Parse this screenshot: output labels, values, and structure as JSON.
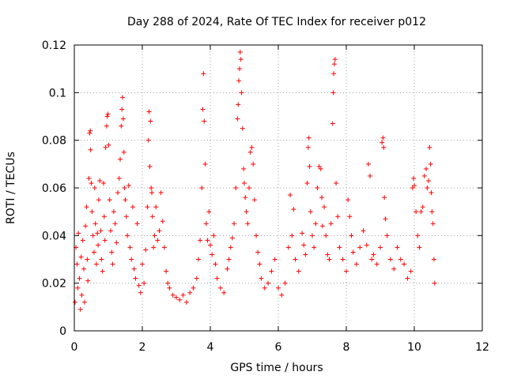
{
  "chart_data": {
    "type": "scatter",
    "title": "Day 288 of 2024, Rate Of TEC Index for receiver p012",
    "xlabel": "GPS time / hours",
    "ylabel": "ROTI / TECUs",
    "xlim": [
      0,
      12
    ],
    "ylim": [
      0,
      0.12
    ],
    "grid": true,
    "marker": "+",
    "color": "#ff0000",
    "x_ticks": [
      0,
      2,
      4,
      6,
      8,
      10,
      12
    ],
    "x_tick_labels": [
      "0",
      "2",
      "4",
      "6",
      "8",
      "10",
      "12"
    ],
    "y_ticks": [
      0,
      0.02,
      0.04,
      0.06,
      0.08,
      0.1,
      0.12
    ],
    "y_tick_labels": [
      "0",
      "0.02",
      "0.04",
      "0.06",
      "0.08",
      "0.1",
      "0.12"
    ],
    "series": [
      {
        "name": "ROTI",
        "points": [
          [
            0.02,
            0.012
          ],
          [
            0.05,
            0.035
          ],
          [
            0.08,
            0.028
          ],
          [
            0.1,
            0.018
          ],
          [
            0.12,
            0.041
          ],
          [
            0.15,
            0.022
          ],
          [
            0.18,
            0.009
          ],
          [
            0.2,
            0.031
          ],
          [
            0.22,
            0.015
          ],
          [
            0.25,
            0.038
          ],
          [
            0.28,
            0.026
          ],
          [
            0.3,
            0.012
          ],
          [
            0.33,
            0.044
          ],
          [
            0.36,
            0.052
          ],
          [
            0.38,
            0.03
          ],
          [
            0.4,
            0.021
          ],
          [
            0.43,
            0.064
          ],
          [
            0.45,
            0.083
          ],
          [
            0.47,
            0.084
          ],
          [
            0.48,
            0.076
          ],
          [
            0.5,
            0.062
          ],
          [
            0.52,
            0.05
          ],
          [
            0.55,
            0.04
          ],
          [
            0.58,
            0.033
          ],
          [
            0.6,
            0.06
          ],
          [
            0.62,
            0.045
          ],
          [
            0.65,
            0.028
          ],
          [
            0.68,
            0.041
          ],
          [
            0.7,
            0.036
          ],
          [
            0.72,
            0.055
          ],
          [
            0.75,
            0.063
          ],
          [
            0.78,
            0.042
          ],
          [
            0.8,
            0.03
          ],
          [
            0.83,
            0.025
          ],
          [
            0.86,
            0.062
          ],
          [
            0.88,
            0.048
          ],
          [
            0.9,
            0.038
          ],
          [
            0.92,
            0.077
          ],
          [
            0.95,
            0.086
          ],
          [
            0.97,
            0.09
          ],
          [
            0.99,
            0.091
          ],
          [
            1.01,
            0.078
          ],
          [
            1.04,
            0.055
          ],
          [
            1.07,
            0.042
          ],
          [
            1.1,
            0.033
          ],
          [
            1.13,
            0.028
          ],
          [
            1.16,
            0.05
          ],
          [
            1.2,
            0.045
          ],
          [
            1.24,
            0.037
          ],
          [
            1.28,
            0.058
          ],
          [
            1.32,
            0.064
          ],
          [
            1.35,
            0.072
          ],
          [
            1.38,
            0.086
          ],
          [
            1.4,
            0.093
          ],
          [
            1.42,
            0.098
          ],
          [
            1.44,
            0.089
          ],
          [
            1.46,
            0.075
          ],
          [
            1.48,
            0.06
          ],
          [
            1.5,
            0.055
          ],
          [
            1.53,
            0.048
          ],
          [
            1.56,
            0.04
          ],
          [
            1.6,
            0.061
          ],
          [
            1.64,
            0.035
          ],
          [
            1.68,
            0.03
          ],
          [
            1.72,
            0.052
          ],
          [
            1.76,
            0.026
          ],
          [
            1.8,
            0.022
          ],
          [
            1.85,
            0.045
          ],
          [
            1.9,
            0.019
          ],
          [
            1.95,
            0.016
          ],
          [
            2.0,
            0.028
          ],
          [
            2.05,
            0.02
          ],
          [
            2.1,
            0.034
          ],
          [
            2.15,
            0.052
          ],
          [
            2.18,
            0.08
          ],
          [
            2.2,
            0.092
          ],
          [
            2.22,
            0.069
          ],
          [
            2.24,
            0.088
          ],
          [
            2.26,
            0.06
          ],
          [
            2.28,
            0.058
          ],
          [
            2.3,
            0.048
          ],
          [
            2.33,
            0.035
          ],
          [
            2.36,
            0.04
          ],
          [
            2.4,
            0.052
          ],
          [
            2.45,
            0.038
          ],
          [
            2.5,
            0.042
          ],
          [
            2.55,
            0.058
          ],
          [
            2.6,
            0.046
          ],
          [
            2.65,
            0.035
          ],
          [
            2.7,
            0.025
          ],
          [
            2.75,
            0.02
          ],
          [
            2.8,
            0.018
          ],
          [
            2.9,
            0.015
          ],
          [
            3.0,
            0.014
          ],
          [
            3.1,
            0.013
          ],
          [
            3.2,
            0.015
          ],
          [
            3.3,
            0.012
          ],
          [
            3.4,
            0.016
          ],
          [
            3.5,
            0.018
          ],
          [
            3.6,
            0.022
          ],
          [
            3.65,
            0.03
          ],
          [
            3.7,
            0.038
          ],
          [
            3.75,
            0.06
          ],
          [
            3.78,
            0.093
          ],
          [
            3.8,
            0.108
          ],
          [
            3.82,
            0.088
          ],
          [
            3.85,
            0.07
          ],
          [
            3.88,
            0.045
          ],
          [
            3.92,
            0.038
          ],
          [
            3.96,
            0.05
          ],
          [
            4.0,
            0.036
          ],
          [
            4.05,
            0.032
          ],
          [
            4.1,
            0.04
          ],
          [
            4.15,
            0.028
          ],
          [
            4.2,
            0.022
          ],
          [
            4.3,
            0.018
          ],
          [
            4.4,
            0.016
          ],
          [
            4.5,
            0.026
          ],
          [
            4.55,
            0.03
          ],
          [
            4.6,
            0.035
          ],
          [
            4.65,
            0.039
          ],
          [
            4.7,
            0.045
          ],
          [
            4.75,
            0.06
          ],
          [
            4.8,
            0.089
          ],
          [
            4.82,
            0.095
          ],
          [
            4.84,
            0.105
          ],
          [
            4.86,
            0.11
          ],
          [
            4.88,
            0.117
          ],
          [
            4.9,
            0.114
          ],
          [
            4.92,
            0.1
          ],
          [
            4.95,
            0.085
          ],
          [
            4.98,
            0.068
          ],
          [
            5.0,
            0.062
          ],
          [
            5.03,
            0.056
          ],
          [
            5.06,
            0.05
          ],
          [
            5.1,
            0.045
          ],
          [
            5.14,
            0.06
          ],
          [
            5.18,
            0.075
          ],
          [
            5.22,
            0.077
          ],
          [
            5.26,
            0.07
          ],
          [
            5.3,
            0.055
          ],
          [
            5.35,
            0.04
          ],
          [
            5.4,
            0.033
          ],
          [
            5.45,
            0.028
          ],
          [
            5.5,
            0.022
          ],
          [
            5.6,
            0.018
          ],
          [
            5.7,
            0.02
          ],
          [
            5.8,
            0.025
          ],
          [
            5.9,
            0.03
          ],
          [
            6.0,
            0.018
          ],
          [
            6.1,
            0.015
          ],
          [
            6.2,
            0.02
          ],
          [
            6.3,
            0.035
          ],
          [
            6.35,
            0.057
          ],
          [
            6.4,
            0.04
          ],
          [
            6.45,
            0.051
          ],
          [
            6.5,
            0.03
          ],
          [
            6.6,
            0.025
          ],
          [
            6.7,
            0.041
          ],
          [
            6.75,
            0.036
          ],
          [
            6.8,
            0.032
          ],
          [
            6.85,
            0.062
          ],
          [
            6.88,
            0.077
          ],
          [
            6.9,
            0.081
          ],
          [
            6.92,
            0.069
          ],
          [
            6.95,
            0.05
          ],
          [
            7.0,
            0.04
          ],
          [
            7.05,
            0.035
          ],
          [
            7.1,
            0.045
          ],
          [
            7.15,
            0.06
          ],
          [
            7.2,
            0.069
          ],
          [
            7.25,
            0.068
          ],
          [
            7.28,
            0.056
          ],
          [
            7.3,
            0.044
          ],
          [
            7.35,
            0.052
          ],
          [
            7.4,
            0.04
          ],
          [
            7.45,
            0.032
          ],
          [
            7.5,
            0.03
          ],
          [
            7.55,
            0.045
          ],
          [
            7.6,
            0.087
          ],
          [
            7.62,
            0.1
          ],
          [
            7.63,
            0.108
          ],
          [
            7.65,
            0.112
          ],
          [
            7.67,
            0.114
          ],
          [
            7.7,
            0.062
          ],
          [
            7.75,
            0.048
          ],
          [
            7.8,
            0.035
          ],
          [
            7.9,
            0.03
          ],
          [
            8.0,
            0.025
          ],
          [
            8.05,
            0.055
          ],
          [
            8.1,
            0.048
          ],
          [
            8.15,
            0.04
          ],
          [
            8.2,
            0.033
          ],
          [
            8.3,
            0.028
          ],
          [
            8.4,
            0.035
          ],
          [
            8.5,
            0.042
          ],
          [
            8.6,
            0.036
          ],
          [
            8.65,
            0.07
          ],
          [
            8.7,
            0.065
          ],
          [
            8.75,
            0.03
          ],
          [
            8.8,
            0.032
          ],
          [
            8.9,
            0.028
          ],
          [
            9.0,
            0.035
          ],
          [
            9.05,
            0.079
          ],
          [
            9.08,
            0.081
          ],
          [
            9.1,
            0.077
          ],
          [
            9.12,
            0.056
          ],
          [
            9.15,
            0.047
          ],
          [
            9.2,
            0.04
          ],
          [
            9.3,
            0.03
          ],
          [
            9.4,
            0.026
          ],
          [
            9.5,
            0.035
          ],
          [
            9.6,
            0.03
          ],
          [
            9.7,
            0.028
          ],
          [
            9.8,
            0.022
          ],
          [
            9.9,
            0.025
          ],
          [
            9.95,
            0.06
          ],
          [
            9.98,
            0.064
          ],
          [
            10.0,
            0.061
          ],
          [
            10.05,
            0.05
          ],
          [
            10.1,
            0.04
          ],
          [
            10.15,
            0.035
          ],
          [
            10.2,
            0.05
          ],
          [
            10.25,
            0.052
          ],
          [
            10.3,
            0.065
          ],
          [
            10.35,
            0.068
          ],
          [
            10.38,
            0.06
          ],
          [
            10.42,
            0.063
          ],
          [
            10.45,
            0.077
          ],
          [
            10.48,
            0.07
          ],
          [
            10.5,
            0.058
          ],
          [
            10.52,
            0.05
          ],
          [
            10.55,
            0.045
          ],
          [
            10.58,
            0.03
          ],
          [
            10.6,
            0.02
          ]
        ]
      }
    ]
  }
}
